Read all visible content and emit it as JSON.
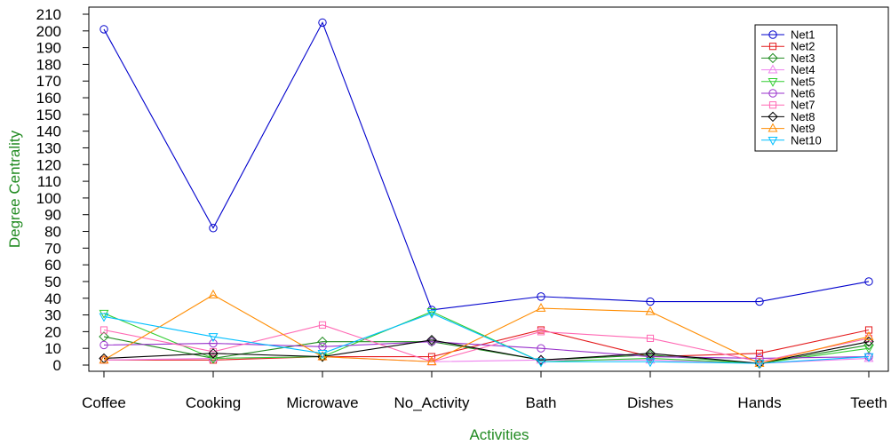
{
  "chart_data": {
    "type": "line",
    "title": "",
    "xlabel": "Activities",
    "ylabel": "Degree Centrality",
    "axis_title_color": "#228B22",
    "categories": [
      "Coffee",
      "Cooking",
      "Microwave",
      "No_Activity",
      "Bath",
      "Dishes",
      "Hands",
      "Teeth"
    ],
    "ylim": [
      0,
      210
    ],
    "yticks": [
      0,
      10,
      20,
      30,
      40,
      50,
      60,
      70,
      80,
      90,
      100,
      110,
      120,
      130,
      140,
      150,
      160,
      170,
      180,
      190,
      200,
      210
    ],
    "grid": false,
    "legend_position": "top-right",
    "series": [
      {
        "name": "Net1",
        "color": "#0000CD",
        "marker": "circle",
        "values": [
          201,
          82,
          205,
          33,
          41,
          38,
          38,
          50
        ]
      },
      {
        "name": "Net2",
        "color": "#E41A1C",
        "marker": "square",
        "values": [
          3,
          3,
          5,
          5,
          21,
          5,
          7,
          21
        ]
      },
      {
        "name": "Net3",
        "color": "#228B22",
        "marker": "diamond",
        "values": [
          17,
          4,
          14,
          14,
          3,
          6,
          1,
          12
        ]
      },
      {
        "name": "Net4",
        "color": "#EE82EE",
        "marker": "triangle-up",
        "values": [
          3,
          4,
          5,
          2,
          3,
          3,
          1,
          4
        ]
      },
      {
        "name": "Net5",
        "color": "#32CD32",
        "marker": "triangle-down",
        "values": [
          31,
          4,
          5,
          32,
          2,
          4,
          1,
          10
        ]
      },
      {
        "name": "Net6",
        "color": "#9932CC",
        "marker": "circle",
        "values": [
          12,
          13,
          11,
          14,
          10,
          5,
          4,
          5
        ]
      },
      {
        "name": "Net7",
        "color": "#FF69B4",
        "marker": "square",
        "values": [
          21,
          8,
          24,
          2,
          20,
          16,
          2,
          16
        ]
      },
      {
        "name": "Net8",
        "color": "#000000",
        "marker": "diamond",
        "values": [
          4,
          7,
          5,
          15,
          3,
          7,
          1,
          14
        ]
      },
      {
        "name": "Net9",
        "color": "#FF8C00",
        "marker": "triangle-up",
        "values": [
          3,
          42,
          5,
          2,
          34,
          32,
          1,
          17
        ]
      },
      {
        "name": "Net10",
        "color": "#00BFFF",
        "marker": "triangle-down",
        "values": [
          29,
          17,
          7,
          31,
          2,
          2,
          1,
          5
        ]
      }
    ]
  }
}
